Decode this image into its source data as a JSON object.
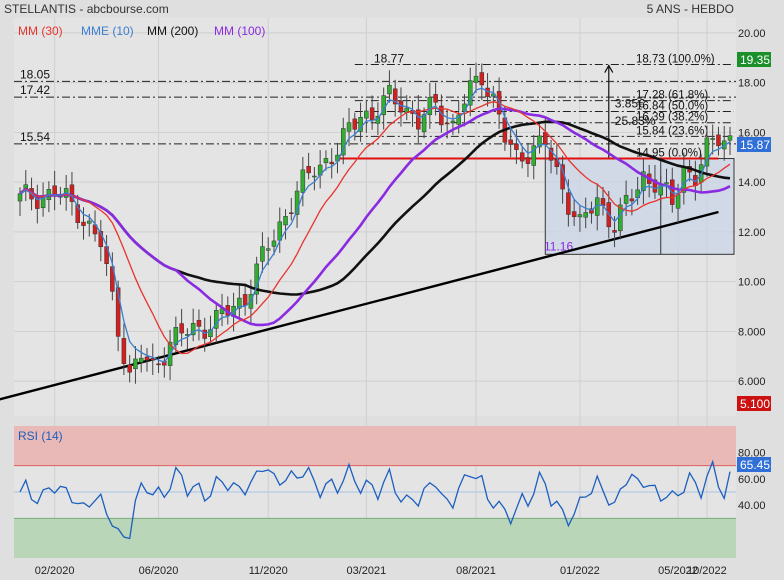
{
  "header": {
    "title": "STELLANTIS - abcbourse.com",
    "period": "5 ANS - HEBDO"
  },
  "legend": [
    {
      "label": "MM (30)",
      "color": "#e8342c"
    },
    {
      "label": "MME (10)",
      "color": "#3a7fd0"
    },
    {
      "label": "MM (200)",
      "color": "#111111"
    },
    {
      "label": "MM (100)",
      "color": "#8a2be2"
    }
  ],
  "price_panel": {
    "ylim": [
      4.6,
      20.6
    ],
    "y_ticks": [
      "20.00",
      "18.00",
      "16.00",
      "14.00",
      "12.00",
      "10.00",
      "8.000",
      "6.000"
    ],
    "x_ticks": [
      "02/2020",
      "06/2020",
      "11/2020",
      "03/2021",
      "08/2021",
      "01/2022",
      "05/2022",
      "10/2022"
    ],
    "badges": {
      "high": {
        "text": "19.35",
        "color": "#1a8f2a"
      },
      "last": {
        "text": "15.87",
        "color": "#2f6fd6"
      },
      "low": {
        "text": "5.100",
        "color": "#cc1111"
      }
    },
    "levels": [
      {
        "value": 18.05,
        "label": "18.05"
      },
      {
        "value": 17.42,
        "label": "17.42"
      },
      {
        "value": 15.54,
        "label": "15.54"
      }
    ],
    "fib": {
      "top_label": "18.77",
      "levels": [
        {
          "value": 18.73,
          "label": "18.73  (100.0%)"
        },
        {
          "value": 17.28,
          "label": "17.28  (61.8%)"
        },
        {
          "value": 16.84,
          "label": "16.84  (50.0%)"
        },
        {
          "value": 16.39,
          "label": "16.39  (38.2%)"
        },
        {
          "value": 15.84,
          "label": "15.84  (23.6%)"
        },
        {
          "value": 14.95,
          "label": "14.95  (0.0%)"
        }
      ],
      "move_abs": "3.85€",
      "move_pct": "25.83%",
      "box_low_label": "11.16"
    }
  },
  "rsi_panel": {
    "label": "RSI (14)",
    "ylim": [
      0,
      100
    ],
    "y_ticks": [
      "80.00",
      "60.00",
      "40.00"
    ],
    "last_badge": "65.45",
    "overbought": 70,
    "oversold": 30
  },
  "chart_data": [
    {
      "type": "candlestick",
      "title": "STELLANTIS - abcbourse.com",
      "period": "5 ANS - HEBDO",
      "ylim": [
        4.6,
        20.6
      ],
      "x_ticks": [
        "02/2020",
        "06/2020",
        "11/2020",
        "03/2021",
        "08/2021",
        "01/2022",
        "05/2022",
        "10/2022"
      ],
      "close_anchors": [
        [
          0,
          13.3
        ],
        [
          6,
          13.6
        ],
        [
          10,
          12.9
        ],
        [
          14,
          11.5
        ],
        [
          17,
          8.2
        ],
        [
          19,
          6.2
        ],
        [
          21,
          7.0
        ],
        [
          23,
          6.5
        ],
        [
          26,
          7.6
        ],
        [
          30,
          8.1
        ],
        [
          34,
          8.4
        ],
        [
          39,
          9.4
        ],
        [
          43,
          11.4
        ],
        [
          47,
          13.2
        ],
        [
          51,
          14.6
        ],
        [
          55,
          15.2
        ],
        [
          59,
          16.9
        ],
        [
          61,
          16.6
        ],
        [
          64,
          17.4
        ],
        [
          66,
          17.3
        ],
        [
          69,
          16.3
        ],
        [
          72,
          17.2
        ],
        [
          75,
          16.2
        ],
        [
          78,
          17.7
        ],
        [
          80,
          18.4
        ],
        [
          82,
          17.3
        ],
        [
          84,
          15.7
        ],
        [
          86,
          15.0
        ],
        [
          88,
          15.3
        ],
        [
          91,
          15.5
        ],
        [
          94,
          13.8
        ],
        [
          97,
          12.2
        ],
        [
          100,
          13.3
        ],
        [
          103,
          12.3
        ],
        [
          106,
          13.4
        ],
        [
          108,
          14.3
        ],
        [
          110,
          14.0
        ],
        [
          113,
          13.1
        ],
        [
          115,
          14.6
        ],
        [
          117,
          14.2
        ],
        [
          119,
          15.2
        ],
        [
          121,
          15.87
        ]
      ],
      "series": [
        {
          "name": "MM (30)"
        },
        {
          "name": "MME (10)"
        },
        {
          "name": "MM (200)"
        },
        {
          "name": "MM (100)"
        }
      ],
      "trendlines": [
        {
          "from": [
            -8,
            5.0
          ],
          "to": [
            121,
            12.8
          ]
        },
        {
          "from": [
            55,
            14.95
          ],
          "to": [
            121,
            14.95
          ]
        }
      ]
    },
    {
      "type": "line",
      "series": [
        {
          "name": "RSI (14)",
          "last": 65.45
        }
      ],
      "ylim": [
        0,
        100
      ],
      "y_ticks": [
        40,
        60,
        80
      ],
      "zones": {
        "overbought": 70,
        "oversold": 30
      }
    }
  ]
}
